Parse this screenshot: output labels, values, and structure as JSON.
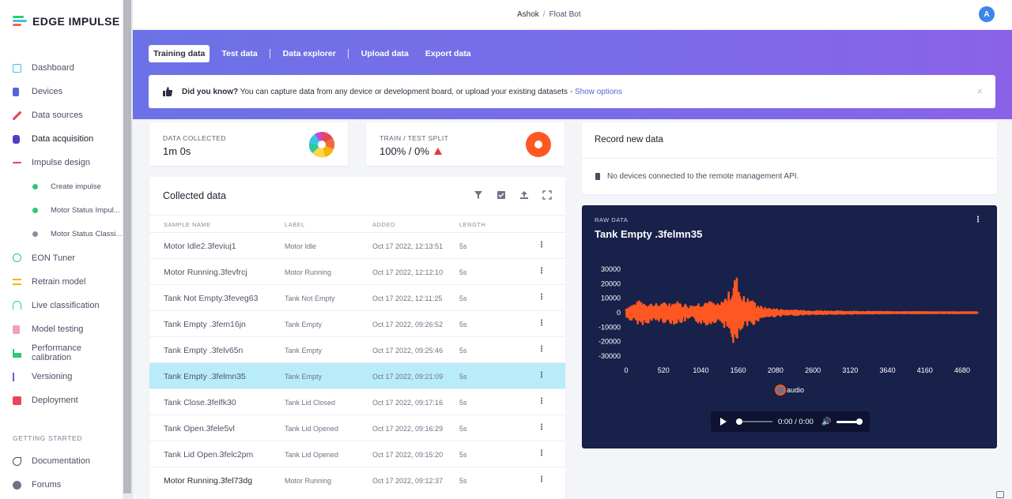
{
  "app": {
    "name": "EDGE IMPULSE"
  },
  "breadcrumb": {
    "user": "Ashok",
    "separator": "/",
    "project": "Float Bot"
  },
  "user": {
    "avatar_initial": "A"
  },
  "sidebar": {
    "items": [
      {
        "label": "Dashboard",
        "icon": "monitor-icon",
        "color": "#39c3e6"
      },
      {
        "label": "Devices",
        "icon": "device-icon",
        "color": "#5a62d9"
      },
      {
        "label": "Data sources",
        "icon": "wand-icon",
        "color": "#e8465a"
      },
      {
        "label": "Data acquisition",
        "icon": "database-icon",
        "color": "#4c3fc4"
      },
      {
        "label": "Impulse design",
        "icon": "pulse-icon",
        "color": "#e8465a"
      }
    ],
    "sub_items": [
      {
        "label": "Create impulse",
        "status_color": "#2dc77a"
      },
      {
        "label": "Motor Status Impul...",
        "status_color": "#2dc77a"
      },
      {
        "label": "Motor Status Classi...",
        "status_color": "#8a8ea0"
      }
    ],
    "items_after": [
      {
        "label": "EON Tuner",
        "icon": "tuner-icon",
        "color": "#2dc77a"
      },
      {
        "label": "Retrain model",
        "icon": "shuffle-icon",
        "color": "#f2b707"
      },
      {
        "label": "Live classification",
        "icon": "live-icon",
        "color": "#2dc7a5"
      },
      {
        "label": "Model testing",
        "icon": "flask-icon",
        "color": "#f0a0b8"
      },
      {
        "label": "Performance calibration",
        "icon": "calibration-icon",
        "color": "#2dc77a"
      },
      {
        "label": "Versioning",
        "icon": "branch-icon",
        "color": "#5a62d9"
      },
      {
        "label": "Deployment",
        "icon": "box-icon",
        "color": "#e8465a"
      }
    ],
    "section_heading": "GETTING STARTED",
    "bottom_items": [
      {
        "label": "Documentation",
        "icon": "rocket-icon"
      },
      {
        "label": "Forums",
        "icon": "chat-icon"
      }
    ]
  },
  "tabs": [
    {
      "label": "Training data",
      "active": true
    },
    {
      "label": "Test data"
    },
    {
      "label": "Data explorer"
    },
    {
      "label": "Upload data"
    },
    {
      "label": "Export data"
    }
  ],
  "notice": {
    "bold": "Did you know?",
    "text": " You can capture data from any device or development board, or upload your existing datasets - ",
    "link": "Show options",
    "close": "×"
  },
  "stats": {
    "collected_label": "DATA COLLECTED",
    "collected_value": "1m 0s",
    "split_label": "TRAIN / TEST SPLIT",
    "split_value": "100% / 0%"
  },
  "collected": {
    "title": "Collected data",
    "columns": [
      "SAMPLE NAME",
      "LABEL",
      "ADDED",
      "LENGTH"
    ],
    "rows": [
      {
        "name": "Motor Idle2.3feviuj1",
        "label": "Motor Idle",
        "added": "Oct 17 2022, 12:13:51",
        "length": "5s"
      },
      {
        "name": "Motor Running.3fevfrcj",
        "label": "Motor Running",
        "added": "Oct 17 2022, 12:12:10",
        "length": "5s"
      },
      {
        "name": "Tank Not Empty.3feveg63",
        "label": "Tank Not Empty",
        "added": "Oct 17 2022, 12:11:25",
        "length": "5s"
      },
      {
        "name": "Tank Empty .3fem16jn",
        "label": "Tank Empty",
        "added": "Oct 17 2022, 09:26:52",
        "length": "5s"
      },
      {
        "name": "Tank Empty .3felv65n",
        "label": "Tank Empty",
        "added": "Oct 17 2022, 09:25:46",
        "length": "5s"
      },
      {
        "name": "Tank Empty .3felmn35",
        "label": "Tank Empty",
        "added": "Oct 17 2022, 09:21:09",
        "length": "5s",
        "selected": true
      },
      {
        "name": "Tank Close.3felfk30",
        "label": "Tank Lid Closed",
        "added": "Oct 17 2022, 09:17:16",
        "length": "5s"
      },
      {
        "name": "Tank Open.3fele5vl",
        "label": "Tank Lid Opened",
        "added": "Oct 17 2022, 09:16:29",
        "length": "5s"
      },
      {
        "name": "Tank Lid Open.3felc2pm",
        "label": "Tank Lid Opened",
        "added": "Oct 17 2022, 09:15:20",
        "length": "5s"
      },
      {
        "name": "Motor Running.3fel73dg",
        "label": "Motor Running",
        "added": "Oct 17 2022, 09:12:37",
        "length": "5s"
      }
    ],
    "row_menu": "⋮"
  },
  "record": {
    "title": "Record new data",
    "message": "No devices connected to the remote management API."
  },
  "raw": {
    "section_label": "RAW DATA",
    "title": "Tank Empty .3felmn35",
    "menu": "⋮",
    "player_time": "0:00 / 0:00"
  },
  "chart_data": {
    "type": "line",
    "series": [
      {
        "name": "audio",
        "color": "#ff5722"
      }
    ],
    "yticks": [
      "30000",
      "20000",
      "10000",
      "0",
      "-10000",
      "-20000",
      "-30000"
    ],
    "xticks": [
      "0",
      "520",
      "1040",
      "1560",
      "2080",
      "2600",
      "3120",
      "3640",
      "4160",
      "4680"
    ],
    "ylim": [
      -30000,
      30000
    ],
    "xlim": [
      0,
      4900
    ],
    "envelope": [
      {
        "x": 0,
        "amp": 4000
      },
      {
        "x": 200,
        "amp": 8500
      },
      {
        "x": 400,
        "amp": 6000
      },
      {
        "x": 700,
        "amp": 8000
      },
      {
        "x": 900,
        "amp": 5000
      },
      {
        "x": 1100,
        "amp": 9000
      },
      {
        "x": 1300,
        "amp": 5500
      },
      {
        "x": 1450,
        "amp": 16000
      },
      {
        "x": 1530,
        "amp": 27000
      },
      {
        "x": 1620,
        "amp": 12000
      },
      {
        "x": 1750,
        "amp": 9000
      },
      {
        "x": 1900,
        "amp": 3500
      },
      {
        "x": 2200,
        "amp": 2000
      },
      {
        "x": 2600,
        "amp": 1200
      },
      {
        "x": 3100,
        "amp": 800
      },
      {
        "x": 3700,
        "amp": 500
      },
      {
        "x": 4900,
        "amp": 300
      }
    ]
  },
  "colors": {
    "accent": "#5a62d9",
    "selected_row": "#b9ecf9",
    "waveform": "#ff5722",
    "chart_bg": "#18214a"
  }
}
